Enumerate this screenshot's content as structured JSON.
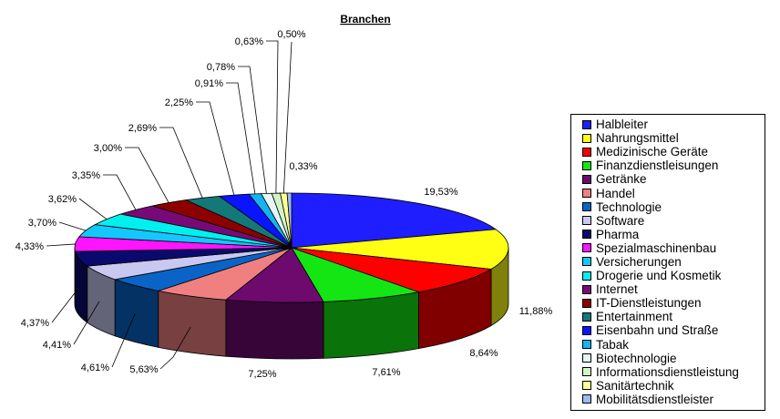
{
  "chart_data": {
    "type": "pie",
    "title": "Branchen",
    "legend_position": "right",
    "slices": [
      {
        "name": "Halbleiter",
        "value": 19.53,
        "label": "19,53%",
        "color": "#1e1eff"
      },
      {
        "name": "Nahrungsmittel",
        "value": 11.88,
        "label": "11,88%",
        "color": "#ffff14"
      },
      {
        "name": "Medizinische Geräte",
        "value": 8.64,
        "label": "8,64%",
        "color": "#ff0000"
      },
      {
        "name": "Finanzdienstleisungen",
        "value": 7.61,
        "label": "7,61%",
        "color": "#14e614"
      },
      {
        "name": "Getränke",
        "value": 7.25,
        "label": "7,25%",
        "color": "#6e0a6e"
      },
      {
        "name": "Handel",
        "value": 5.63,
        "label": "5,63%",
        "color": "#f08080"
      },
      {
        "name": "Technologie",
        "value": 4.61,
        "label": "4,61%",
        "color": "#0a64c8"
      },
      {
        "name": "Software",
        "value": 4.41,
        "label": "4,41%",
        "color": "#c8c8f0"
      },
      {
        "name": "Pharma",
        "value": 4.37,
        "label": "4,37%",
        "color": "#0a0a6e"
      },
      {
        "name": "Spezialmaschinenbau",
        "value": 4.33,
        "label": "4,33%",
        "color": "#ff14ff"
      },
      {
        "name": "Versicherungen",
        "value": 3.7,
        "label": "3,70%",
        "color": "#14c8ff"
      },
      {
        "name": "Drogerie und Kosmetik",
        "value": 3.62,
        "label": "3,62%",
        "color": "#00f0f0"
      },
      {
        "name": "Internet",
        "value": 3.35,
        "label": "3,35%",
        "color": "#780a78"
      },
      {
        "name": "IT-Dienstleistungen",
        "value": 3.0,
        "label": "3,00%",
        "color": "#8c0000"
      },
      {
        "name": "Entertainment",
        "value": 2.69,
        "label": "2,69%",
        "color": "#147878"
      },
      {
        "name": "Eisenbahn und Straße",
        "value": 2.25,
        "label": "2,25%",
        "color": "#0a14ff"
      },
      {
        "name": "Tabak",
        "value": 0.91,
        "label": "0,91%",
        "color": "#14b4f0"
      },
      {
        "name": "Biotechnologie",
        "value": 0.78,
        "label": "0,78%",
        "color": "#e6f5f5"
      },
      {
        "name": "Informationsdienstleistung",
        "value": 0.63,
        "label": "0,63%",
        "color": "#d2f5c8"
      },
      {
        "name": "Sanitärtechnik",
        "value": 0.5,
        "label": "0,50%",
        "color": "#ffff96"
      },
      {
        "name": "Mobilitätsdienstleister",
        "value": 0.33,
        "label": "0,33%",
        "color": "#9bb9f5"
      }
    ]
  }
}
